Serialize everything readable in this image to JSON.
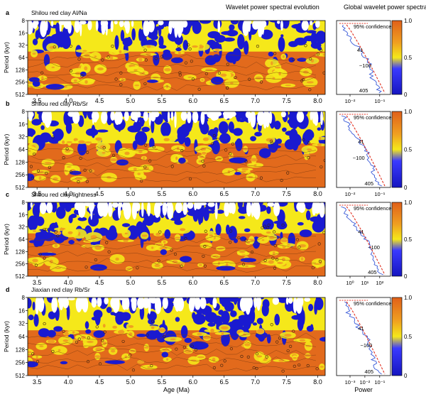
{
  "header": {
    "wavelet_title": "Wavelet power spectral evolution",
    "global_title": "Global wavelet power spectra"
  },
  "common": {
    "xlabel": "Age (Ma)",
    "ylabel": "Period (kyr)",
    "age_ticks": [
      "3.5",
      "4.0",
      "4.5",
      "5.0",
      "5.5",
      "6.0",
      "6.5",
      "7.0",
      "7.5",
      "8.0"
    ],
    "age_range": [
      3.35,
      8.12
    ],
    "period_ticks": [
      "8",
      "16",
      "32",
      "64",
      "128",
      "256",
      "512"
    ],
    "colorbar_ticks": [
      "1.0",
      "0.5",
      "0"
    ],
    "confidence_label": "95% confidence",
    "global_xlabel": "Power"
  },
  "colors": {
    "low": "#1a1ad0",
    "mid": "#f5e81a",
    "high": "#e26a1c",
    "contour": "#7a3a10",
    "confidence": "#e03020",
    "spectrum": "#3a5ad8"
  },
  "chart_data": [
    {
      "type": "heatmap",
      "panel_letter": "a",
      "title": "Shilou red clay Al/Na",
      "xlabel": "",
      "ylabel": "Period (kyr)",
      "power_xticks": [
        "10⁻²",
        "10⁻¹"
      ],
      "peaks": [
        {
          "label": "41",
          "period": 41
        },
        {
          "label": "~100",
          "period": 100
        },
        {
          "label": "405",
          "period": 405
        }
      ],
      "peak_label_offsets": [
        0.38,
        0.42,
        0.42
      ]
    },
    {
      "type": "heatmap",
      "panel_letter": "b",
      "title": "Shilou red clay Rb/Sr",
      "xlabel": "",
      "ylabel": "Period (kyr)",
      "power_xticks": [
        "10⁻²",
        "10⁻¹"
      ],
      "peaks": [
        {
          "label": "41",
          "period": 41
        },
        {
          "label": "~100",
          "period": 100
        },
        {
          "label": "405",
          "period": 405
        }
      ],
      "peak_label_offsets": [
        0.4,
        0.3,
        0.52
      ]
    },
    {
      "type": "heatmap",
      "panel_letter": "c",
      "title": "Shilou red clay lightness",
      "xlabel": "",
      "ylabel": "Period (kyr)",
      "power_xticks": [
        "10⁰",
        "10¹",
        "10²"
      ],
      "peaks": [
        {
          "label": "41",
          "period": 41
        },
        {
          "label": "~100",
          "period": 100
        },
        {
          "label": "405",
          "period": 405
        }
      ],
      "peak_label_offsets": [
        0.4,
        0.58,
        0.58
      ]
    },
    {
      "type": "heatmap",
      "panel_letter": "d",
      "title": "Jiaxian red clay Rb/Sr",
      "xlabel": "Age (Ma)",
      "ylabel": "Period (kyr)",
      "power_xticks": [
        "10⁻³",
        "10⁻²",
        "10⁻¹"
      ],
      "peaks": [
        {
          "label": "41",
          "period": 41
        },
        {
          "label": "~100",
          "period": 100
        },
        {
          "label": "405",
          "period": 405
        }
      ],
      "peak_label_offsets": [
        0.4,
        0.44,
        0.52
      ]
    }
  ]
}
